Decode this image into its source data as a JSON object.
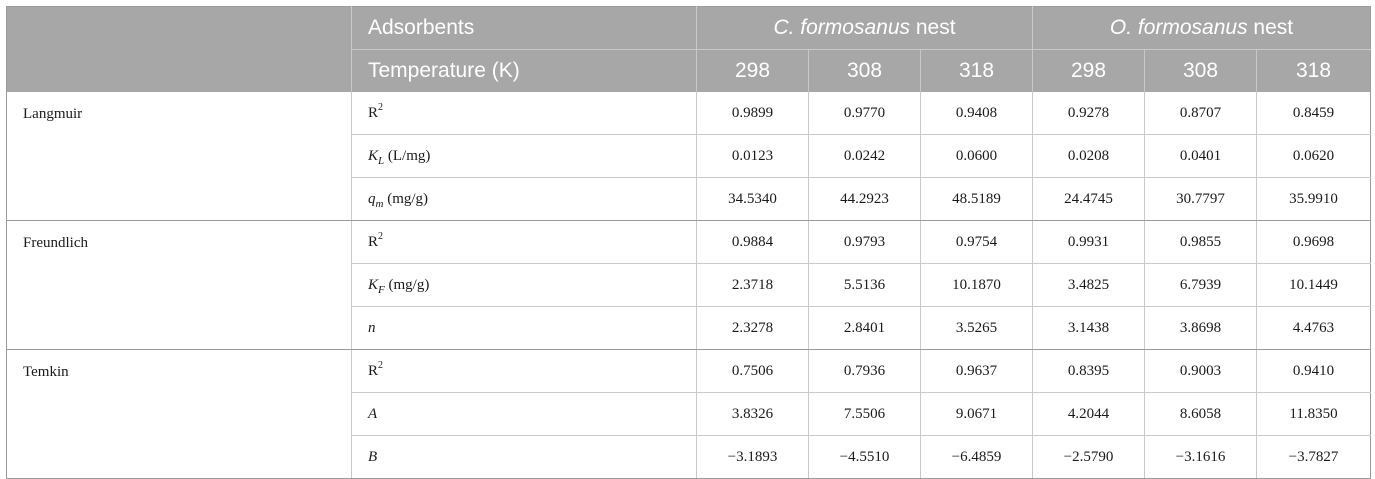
{
  "header": {
    "adsorbents_label": "Adsorbents",
    "temperature_label": "Temperature (K)",
    "group1_prefix": "C. formosanus",
    "group1_suffix": " nest",
    "group2_prefix": "O. formosanus",
    "group2_suffix": " nest",
    "temps": [
      "298",
      "308",
      "318",
      "298",
      "308",
      "318"
    ]
  },
  "models": [
    {
      "name": "Langmuir",
      "rows": [
        {
          "param_main": "R",
          "param_sup": "2",
          "param_sub": "",
          "param_unit": "",
          "italic": false,
          "values": [
            "0.9899",
            "0.9770",
            "0.9408",
            "0.9278",
            "0.8707",
            "0.8459"
          ]
        },
        {
          "param_main": "K",
          "param_sup": "",
          "param_sub": "L",
          "param_unit": " (L/mg)",
          "italic": true,
          "values": [
            "0.0123",
            "0.0242",
            "0.0600",
            "0.0208",
            "0.0401",
            "0.0620"
          ]
        },
        {
          "param_main": "q",
          "param_sup": "",
          "param_sub": "m",
          "param_unit": " (mg/g)",
          "italic": true,
          "values": [
            "34.5340",
            "44.2923",
            "48.5189",
            "24.4745",
            "30.7797",
            "35.9910"
          ]
        }
      ]
    },
    {
      "name": "Freundlich",
      "rows": [
        {
          "param_main": "R",
          "param_sup": "2",
          "param_sub": "",
          "param_unit": "",
          "italic": false,
          "values": [
            "0.9884",
            "0.9793",
            "0.9754",
            "0.9931",
            "0.9855",
            "0.9698"
          ]
        },
        {
          "param_main": "K",
          "param_sup": "",
          "param_sub": "F",
          "param_unit": " (mg/g)",
          "italic": true,
          "values": [
            "2.3718",
            "5.5136",
            "10.1870",
            "3.4825",
            "6.7939",
            "10.1449"
          ]
        },
        {
          "param_main": "n",
          "param_sup": "",
          "param_sub": "",
          "param_unit": "",
          "italic": true,
          "values": [
            "2.3278",
            "2.8401",
            "3.5265",
            "3.1438",
            "3.8698",
            "4.4763"
          ]
        }
      ]
    },
    {
      "name": "Temkin",
      "rows": [
        {
          "param_main": "R",
          "param_sup": "2",
          "param_sub": "",
          "param_unit": "",
          "italic": false,
          "values": [
            "0.7506",
            "0.7936",
            "0.9637",
            "0.8395",
            "0.9003",
            "0.9410"
          ]
        },
        {
          "param_main": "A",
          "param_sup": "",
          "param_sub": "",
          "param_unit": "",
          "italic": true,
          "values": [
            "3.8326",
            "7.5506",
            "9.0671",
            "4.2044",
            "8.6058",
            "11.8350"
          ]
        },
        {
          "param_main": "B",
          "param_sup": "",
          "param_sub": "",
          "param_unit": "",
          "italic": true,
          "values": [
            "−3.1893",
            "−4.5510",
            "−6.4859",
            "−2.5790",
            "−3.1616",
            "−3.7827"
          ]
        }
      ]
    }
  ]
}
